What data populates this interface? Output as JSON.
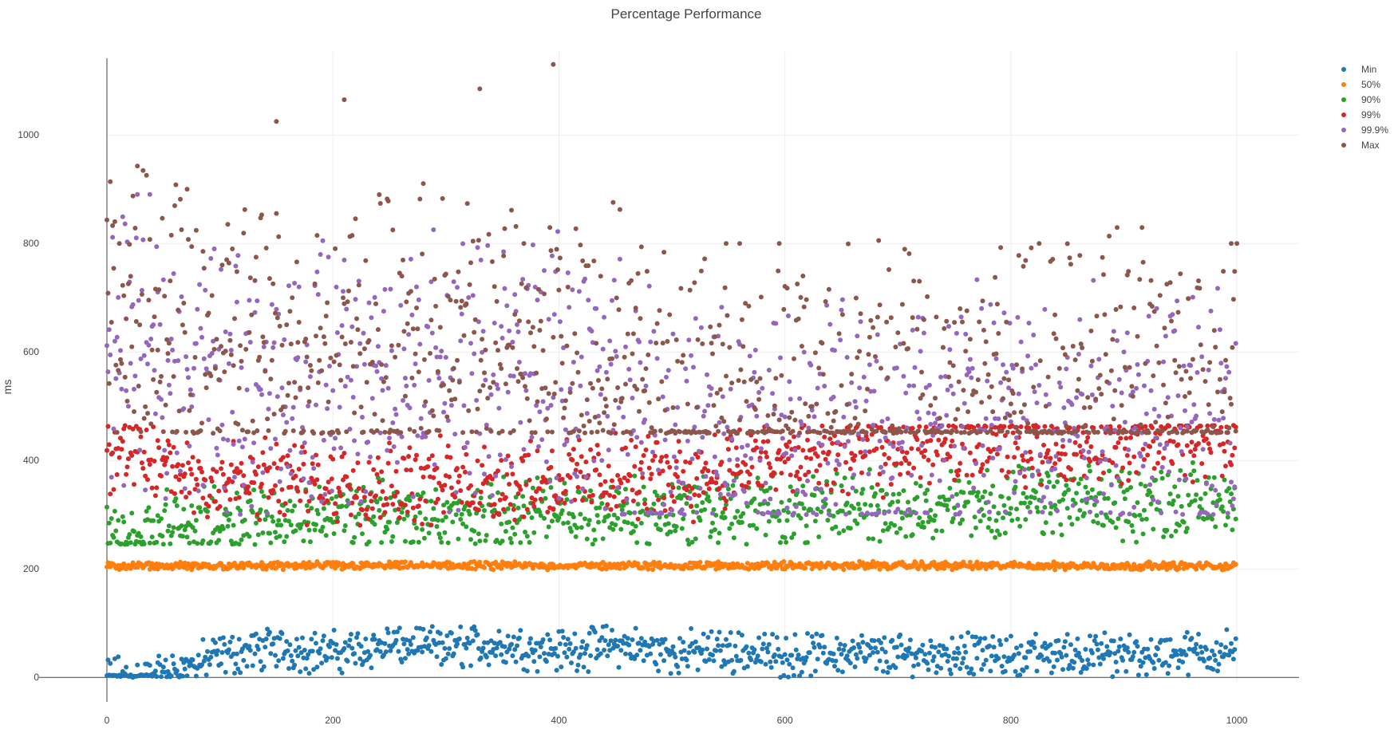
{
  "chart_data": {
    "type": "scatter",
    "title": "Percentage Performance",
    "xlabel": "",
    "ylabel": "ms",
    "xlim": [
      0,
      1055
    ],
    "ylim": [
      -60,
      1190
    ],
    "x_ticks": [
      0,
      200,
      400,
      600,
      800,
      1000
    ],
    "y_ticks": [
      0,
      200,
      400,
      600,
      800,
      1000
    ],
    "x_tick_labels": [
      "0",
      "200",
      "400",
      "600",
      "800",
      "1000"
    ],
    "y_tick_labels": [
      "0",
      "200",
      "400",
      "600",
      "800",
      "1000"
    ],
    "grid": true,
    "legend_position": "top-right",
    "x_range": [
      0,
      999
    ],
    "series": [
      {
        "name": "Min",
        "color": "#1f77b4",
        "band": [
          0,
          95
        ],
        "samples": [
          [
            0,
            0
          ],
          [
            50,
            2
          ],
          [
            100,
            40
          ],
          [
            150,
            55
          ],
          [
            200,
            45
          ],
          [
            250,
            60
          ],
          [
            300,
            55
          ],
          [
            350,
            60
          ],
          [
            400,
            50
          ],
          [
            450,
            60
          ],
          [
            500,
            45
          ],
          [
            550,
            50
          ],
          [
            600,
            40
          ],
          [
            650,
            45
          ],
          [
            700,
            40
          ],
          [
            750,
            45
          ],
          [
            800,
            40
          ],
          [
            850,
            45
          ],
          [
            900,
            40
          ],
          [
            950,
            45
          ],
          [
            999,
            50
          ]
        ]
      },
      {
        "name": "50%",
        "color": "#ff7f0e",
        "band": [
          198,
          215
        ],
        "samples": [
          [
            0,
            205
          ],
          [
            250,
            206
          ],
          [
            500,
            206
          ],
          [
            750,
            206
          ],
          [
            999,
            205
          ]
        ]
      },
      {
        "name": "90%",
        "color": "#2ca02c",
        "band": [
          245,
          400
        ],
        "samples": [
          [
            0,
            255
          ],
          [
            100,
            290
          ],
          [
            200,
            300
          ],
          [
            300,
            295
          ],
          [
            400,
            300
          ],
          [
            500,
            305
          ],
          [
            600,
            310
          ],
          [
            700,
            315
          ],
          [
            800,
            320
          ],
          [
            900,
            320
          ],
          [
            999,
            330
          ]
        ]
      },
      {
        "name": "99%",
        "color": "#d62728",
        "band": [
          280,
          465
        ],
        "samples": [
          [
            0,
            420
          ],
          [
            100,
            360
          ],
          [
            200,
            360
          ],
          [
            300,
            360
          ],
          [
            400,
            365
          ],
          [
            500,
            370
          ],
          [
            600,
            400
          ],
          [
            700,
            420
          ],
          [
            800,
            430
          ],
          [
            900,
            430
          ],
          [
            999,
            440
          ]
        ]
      },
      {
        "name": "99.9%",
        "color": "#9467bd",
        "band": [
          300,
          900
        ],
        "samples": [
          [
            0,
            620
          ],
          [
            100,
            560
          ],
          [
            200,
            540
          ],
          [
            300,
            560
          ],
          [
            400,
            560
          ],
          [
            450,
            530
          ],
          [
            500,
            440
          ],
          [
            600,
            430
          ],
          [
            700,
            470
          ],
          [
            800,
            480
          ],
          [
            900,
            490
          ],
          [
            999,
            495
          ]
        ]
      },
      {
        "name": "Max",
        "color": "#8c564b",
        "band": [
          450,
          1130
        ],
        "samples": [
          [
            0,
            650
          ],
          [
            100,
            600
          ],
          [
            200,
            600
          ],
          [
            300,
            600
          ],
          [
            400,
            600
          ],
          [
            450,
            580
          ],
          [
            500,
            510
          ],
          [
            600,
            500
          ],
          [
            700,
            515
          ],
          [
            800,
            520
          ],
          [
            900,
            525
          ],
          [
            999,
            530
          ]
        ],
        "notable_points": [
          [
            395,
            1130
          ],
          [
            210,
            1065
          ],
          [
            330,
            1085
          ],
          [
            150,
            1025
          ],
          [
            548,
            800
          ],
          [
            560,
            800
          ],
          [
            595,
            800
          ],
          [
            995,
            800
          ],
          [
            1000,
            800
          ]
        ]
      }
    ]
  }
}
